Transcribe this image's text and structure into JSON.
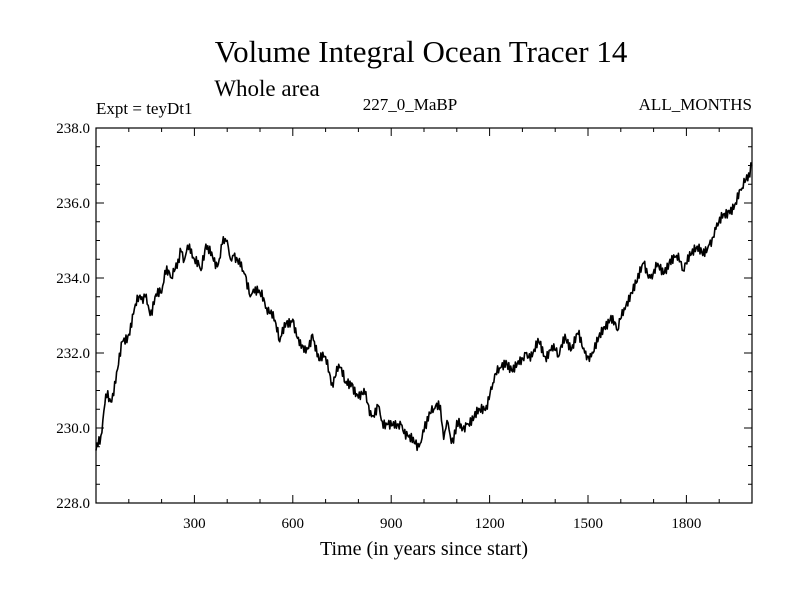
{
  "chart_data": {
    "type": "line",
    "title": "Volume Integral Ocean Tracer 14",
    "subtitle": "Whole area",
    "header_left": "Expt = teyDt1",
    "header_center": "227_0_MaBP",
    "header_right": "ALL_MONTHS",
    "xlabel": "Time (in years since start)",
    "ylabel": "",
    "xlim": [
      0,
      2000
    ],
    "ylim": [
      228.0,
      238.0
    ],
    "x_ticks": [
      300,
      600,
      900,
      1200,
      1500,
      1800
    ],
    "x_tick_labels": [
      "300",
      "600",
      "900",
      "1200",
      "1500",
      "1800"
    ],
    "y_ticks": [
      228.0,
      230.0,
      232.0,
      234.0,
      236.0,
      238.0
    ],
    "y_tick_labels": [
      "228.0",
      "230.0",
      "232.0",
      "234.0",
      "236.0",
      "238.0"
    ],
    "series": [
      {
        "name": "Volume Integral Ocean Tracer 14",
        "color": "#000000",
        "x": [
          0,
          15,
          30,
          45,
          60,
          80,
          100,
          120,
          140,
          150,
          165,
          180,
          200,
          210,
          230,
          250,
          260,
          270,
          285,
          300,
          320,
          335,
          350,
          370,
          385,
          400,
          410,
          420,
          440,
          455,
          470,
          480,
          500,
          520,
          540,
          560,
          580,
          600,
          620,
          640,
          660,
          680,
          700,
          720,
          740,
          760,
          780,
          800,
          820,
          840,
          860,
          870,
          890,
          910,
          930,
          950,
          970,
          985,
          1000,
          1010,
          1030,
          1050,
          1060,
          1070,
          1080,
          1090,
          1100,
          1110,
          1130,
          1150,
          1170,
          1190,
          1210,
          1230,
          1250,
          1270,
          1290,
          1310,
          1330,
          1350,
          1370,
          1390,
          1410,
          1430,
          1450,
          1470,
          1490,
          1510,
          1530,
          1550,
          1570,
          1590,
          1610,
          1630,
          1650,
          1670,
          1690,
          1710,
          1730,
          1750,
          1770,
          1790,
          1810,
          1830,
          1850,
          1870,
          1890,
          1910,
          1930,
          1950,
          1970,
          1990,
          2000
        ],
        "values": [
          229.4,
          229.8,
          230.9,
          230.7,
          231.2,
          232.3,
          232.5,
          233.3,
          233.5,
          233.5,
          233.0,
          233.5,
          233.6,
          234.2,
          234.0,
          234.5,
          234.7,
          234.5,
          234.9,
          234.5,
          234.2,
          234.9,
          234.6,
          234.3,
          234.9,
          235.0,
          234.5,
          234.6,
          234.3,
          234.1,
          233.5,
          233.7,
          233.6,
          233.2,
          233.1,
          232.3,
          232.8,
          232.9,
          232.2,
          232.0,
          232.5,
          231.8,
          231.9,
          231.2,
          231.7,
          231.2,
          231.2,
          230.8,
          230.9,
          230.3,
          230.6,
          230.2,
          230.1,
          230.0,
          230.1,
          229.8,
          229.6,
          229.5,
          229.9,
          230.3,
          230.5,
          230.6,
          229.7,
          230.2,
          229.8,
          229.6,
          230.2,
          230.0,
          230.1,
          230.2,
          230.5,
          230.6,
          231.2,
          231.6,
          231.8,
          231.5,
          231.7,
          232.0,
          231.9,
          232.3,
          231.9,
          232.2,
          231.9,
          232.5,
          232.1,
          232.5,
          232.0,
          231.9,
          232.3,
          232.7,
          233.0,
          232.6,
          233.2,
          233.6,
          233.9,
          234.4,
          234.0,
          234.3,
          234.1,
          234.5,
          234.6,
          234.2,
          234.7,
          234.8,
          234.6,
          234.9,
          235.3,
          235.6,
          235.8,
          236.0,
          236.4,
          236.8,
          237.0
        ]
      }
    ]
  }
}
